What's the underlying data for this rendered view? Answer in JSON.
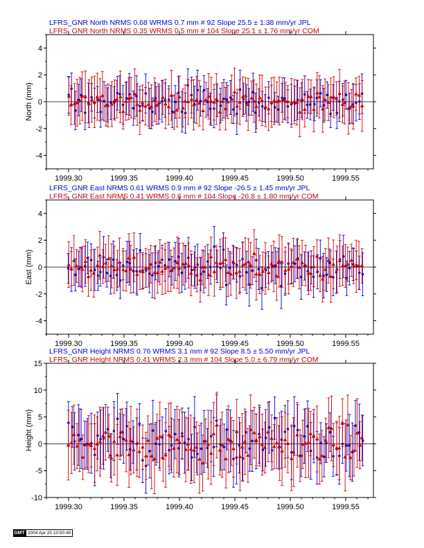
{
  "chart_data": [
    {
      "type": "scatter",
      "component": "north",
      "ylabel": "North (mm)",
      "xlim": [
        1999.28,
        1999.575
      ],
      "ylim": [
        -5,
        5
      ],
      "yticks": [
        -4,
        -2,
        0,
        2,
        4
      ],
      "xticks": [
        1999.3,
        1999.35,
        1999.4,
        1999.45,
        1999.5,
        1999.55
      ],
      "xtick_labels": [
        "1999.30",
        "1999.35",
        "1999.40",
        "1999.45",
        "1999.50",
        "1999.55"
      ],
      "legend": [
        {
          "text": "LFRS_GNR North NRMS 0.68 WRMS  0.7 mm # 92 Slope   25.5 ±  1.38 mm/yr JPL",
          "color": "#0000cc"
        },
        {
          "text": "LFRS_GNR North NRMS 0.35 WRMS  0.5 mm # 104 Slope   25.1 ±  1.76 mm/yr COM",
          "color": "#cc0000"
        }
      ],
      "series": [
        {
          "name": "JPL",
          "color": "#0000cc",
          "marker": "circle",
          "n": 92,
          "sigma": 1.2,
          "wrms": 0.7
        },
        {
          "name": "COM",
          "color": "#cc0000",
          "marker": "triangle",
          "n": 104,
          "sigma": 1.5,
          "wrms": 0.5
        }
      ]
    },
    {
      "type": "scatter",
      "component": "east",
      "ylabel": "East (mm)",
      "xlim": [
        1999.28,
        1999.575
      ],
      "ylim": [
        -5,
        5
      ],
      "yticks": [
        -4,
        -2,
        0,
        2,
        4
      ],
      "xticks": [
        1999.3,
        1999.35,
        1999.4,
        1999.45,
        1999.5,
        1999.55
      ],
      "xtick_labels": [
        "1999.30",
        "1999.35",
        "1999.40",
        "1999.45",
        "1999.50",
        "1999.55"
      ],
      "legend": [
        {
          "text": "LFRS_GNR East NRMS 0.61 WRMS  0.9 mm # 92 Slope  -26.5 ±  1.45 mm/yr JPL",
          "color": "#0000cc"
        },
        {
          "text": "LFRS_GNR East NRMS 0.41 WRMS  0.6 mm # 104 Slope  -26.8 ±  1.80 mm/yr COM",
          "color": "#cc0000"
        }
      ],
      "series": [
        {
          "name": "JPL",
          "color": "#0000cc",
          "marker": "circle",
          "n": 92,
          "sigma": 1.3,
          "wrms": 0.9
        },
        {
          "name": "COM",
          "color": "#cc0000",
          "marker": "triangle",
          "n": 104,
          "sigma": 1.5,
          "wrms": 0.6
        }
      ]
    },
    {
      "type": "scatter",
      "component": "height",
      "ylabel": "Height (mm)",
      "xlim": [
        1999.28,
        1999.575
      ],
      "ylim": [
        -10,
        15
      ],
      "yticks": [
        -10,
        -5,
        0,
        5,
        10,
        15
      ],
      "xticks": [
        1999.3,
        1999.35,
        1999.4,
        1999.45,
        1999.5,
        1999.55
      ],
      "xtick_labels": [
        "1999.30",
        "1999.35",
        "1999.40",
        "1999.45",
        "1999.50",
        "1999.55"
      ],
      "legend": [
        {
          "text": "LFRS_GNR Height NRMS 0.76 WRMS  3.1 mm # 92 Slope    8.5 ±  5.50 mm/yr JPL",
          "color": "#0000cc"
        },
        {
          "text": "LFRS_GNR Height NRMS 0.41 WRMS  2.3 mm # 104 Slope    5.0 ±  6.79 mm/yr COM",
          "color": "#cc0000"
        }
      ],
      "series": [
        {
          "name": "JPL",
          "color": "#0000cc",
          "marker": "circle",
          "n": 92,
          "sigma": 4.5,
          "wrms": 3.1
        },
        {
          "name": "COM",
          "color": "#cc0000",
          "marker": "triangle",
          "n": 104,
          "sigma": 5.0,
          "wrms": 2.3
        }
      ]
    }
  ],
  "footer": {
    "logo": "GMT",
    "timestamp": "2004 Apr 20 10:50:49"
  }
}
